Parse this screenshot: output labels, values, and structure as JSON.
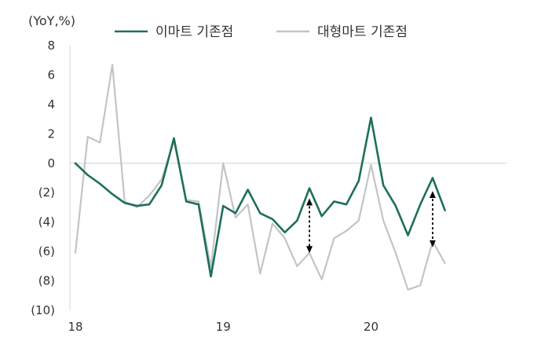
{
  "chart_data": {
    "type": "line",
    "unit_label": "(YoY,%)",
    "ylim": [
      -10,
      8
    ],
    "y_ticks": [
      8,
      6,
      4,
      2,
      0,
      -2,
      -4,
      -6,
      -8,
      -10
    ],
    "y_tick_labels": [
      "8",
      "6",
      "4",
      "2",
      "0",
      "(2)",
      "(4)",
      "(6)",
      "(8)",
      "(10)"
    ],
    "x_ticks": [
      {
        "index": 0,
        "label": "18"
      },
      {
        "index": 12,
        "label": "19"
      },
      {
        "index": 24,
        "label": "20"
      }
    ],
    "x_count": 36,
    "legend_position": "top",
    "grid": false,
    "series": [
      {
        "name": "이마트 기존점",
        "color": "#1e6e5d",
        "values": [
          0.0,
          -0.8,
          -1.4,
          -2.1,
          -2.7,
          -2.9,
          -2.8,
          -1.5,
          1.7,
          -2.6,
          -2.8,
          -7.7,
          -2.9,
          -3.4,
          -1.8,
          -3.4,
          -3.8,
          -4.7,
          -3.9,
          -1.7,
          -3.6,
          -2.6,
          -2.8,
          -1.2,
          3.1,
          -1.5,
          -2.9,
          -4.9,
          -2.8,
          -1.0,
          -3.2
        ]
      },
      {
        "name": "대형마트 기존점",
        "color": "#c4c4c4",
        "values": [
          -6.1,
          1.8,
          1.4,
          6.7,
          -2.6,
          -3.0,
          -2.2,
          -1.1,
          1.5,
          -2.5,
          -2.6,
          -7.1,
          0.0,
          -3.7,
          -2.8,
          -7.5,
          -4.1,
          -5.1,
          -7.0,
          -6.1,
          -7.9,
          -5.1,
          -4.6,
          -3.9,
          -0.1,
          -3.9,
          -6.1,
          -8.6,
          -8.3,
          -5.3,
          -6.8
        ]
      }
    ],
    "annotations": [
      {
        "type": "double-arrow",
        "x_index": 19,
        "from": -2.6,
        "to": -5.9
      },
      {
        "type": "double-arrow",
        "x_index": 29,
        "from": -2.1,
        "to": -5.5
      }
    ]
  }
}
